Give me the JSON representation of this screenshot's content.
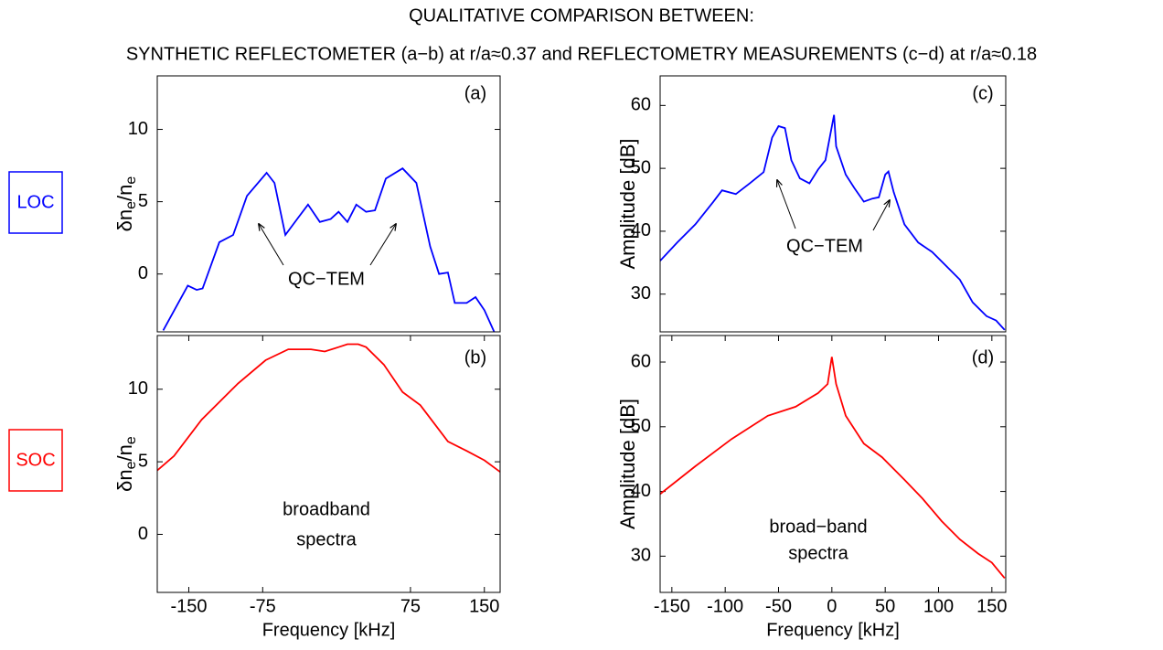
{
  "title": "QUALITATIVE COMPARISON BETWEEN:",
  "subtitle": "SYNTHETIC REFLECTOMETER (a−b) at r/a≈0.37 and REFLECTOMETRY MEASUREMENTS (c−d) at r/a≈0.18",
  "row_labels": [
    {
      "text": "LOC",
      "color": "#0000ff"
    },
    {
      "text": "SOC",
      "color": "#ff0000"
    }
  ],
  "chart_data": [
    {
      "type": "line",
      "annotations": [
        "(a)",
        "QC−TEM"
      ],
      "ylabel": [
        "δn",
        "e",
        "/n",
        "e"
      ],
      "x": [
        -176,
        -151,
        -142,
        -136,
        -119,
        -105,
        -91,
        -71,
        -63,
        -52,
        -40,
        -29,
        -17,
        -6,
        2,
        11,
        20,
        30,
        39,
        50,
        67,
        81,
        95,
        104,
        113,
        120,
        132,
        141,
        150,
        160
      ],
      "series": [
        {
          "color": "#0000ff",
          "values": [
            -3.9,
            -0.8,
            -1.1,
            -1.0,
            2.2,
            2.7,
            5.4,
            7.0,
            6.3,
            2.7,
            3.8,
            4.8,
            3.6,
            3.8,
            4.3,
            3.6,
            4.8,
            4.3,
            4.4,
            6.6,
            7.3,
            6.3,
            1.9,
            0,
            0.1,
            -2,
            -2,
            -1.6,
            -2.5,
            -4
          ]
        }
      ],
      "xlim": [
        -182,
        166
      ],
      "ylim": [
        -4,
        13.7
      ],
      "yticks": [
        0,
        5,
        10
      ]
    },
    {
      "type": "line",
      "annotations": [
        "(b)",
        "broadband",
        "spectra"
      ],
      "ylabel": [
        "δn",
        "e",
        "/n",
        "e"
      ],
      "xlabel": "Frequency [kHz]",
      "x": [
        -182,
        -165,
        -137,
        -100,
        -72,
        -49,
        -26,
        -12,
        2,
        11,
        22,
        30,
        48,
        67,
        85,
        113,
        132,
        150,
        166
      ],
      "series": [
        {
          "color": "#ff0000",
          "values": [
            4.4,
            5.4,
            7.9,
            10.4,
            12,
            12.75,
            12.75,
            12.6,
            12.9,
            13.1,
            13.1,
            12.9,
            11.7,
            9.8,
            8.9,
            6.4,
            5.75,
            5.1,
            4.3
          ]
        }
      ],
      "xlim": [
        -182,
        166
      ],
      "ylim": [
        -4,
        13.7
      ],
      "yticks": [
        0,
        5,
        10
      ],
      "xticks": [
        -150,
        -75,
        75,
        150
      ]
    },
    {
      "type": "line",
      "annotations": [
        "(c)",
        "QC−TEM"
      ],
      "ylabel": [
        "Amplitude [dB]"
      ],
      "x": [
        -161,
        -145,
        -128,
        -111,
        -103,
        -90,
        -77,
        -64,
        -56,
        -50,
        -44,
        -38,
        -30,
        -21,
        -13,
        -6,
        -2,
        2,
        4,
        13,
        21,
        30,
        38,
        44,
        50,
        53,
        58,
        68,
        81,
        94,
        107,
        120,
        132,
        145,
        154,
        162
      ],
      "series": [
        {
          "color": "#0000ff",
          "values": [
            35.3,
            38.2,
            41.1,
            44.7,
            46.5,
            45.9,
            47.6,
            49.4,
            54.9,
            56.7,
            56.4,
            51.3,
            48.4,
            47.6,
            49.8,
            51.3,
            54.9,
            58.5,
            53.5,
            49,
            46.9,
            44.7,
            45.2,
            45.4,
            49,
            49.5,
            46.2,
            41.1,
            38.2,
            36.7,
            34.5,
            32.3,
            28.7,
            26.5,
            25.8,
            24.3
          ]
        }
      ],
      "xlim": [
        -161,
        163
      ],
      "ylim": [
        24,
        64.7
      ],
      "yticks": [
        30,
        40,
        50,
        60
      ]
    },
    {
      "type": "line",
      "annotations": [
        "(d)",
        "broad−band",
        "spectra"
      ],
      "ylabel": [
        "Amplitude [dB]"
      ],
      "xlabel": "Frequency [kHz]",
      "x": [
        -161,
        -128,
        -94,
        -60,
        -34,
        -13,
        -4,
        0,
        4,
        13,
        30,
        47,
        68,
        85,
        103,
        120,
        137,
        150,
        162
      ],
      "series": [
        {
          "color": "#ff0000",
          "values": [
            39.6,
            43.9,
            48.1,
            51.7,
            53.1,
            55.2,
            56.6,
            60.8,
            56.6,
            51.7,
            47.4,
            45.3,
            41.8,
            38.9,
            35.4,
            32.6,
            30.4,
            29,
            26.6
          ]
        }
      ],
      "xlim": [
        -161,
        163
      ],
      "ylim": [
        24.4,
        64.1
      ],
      "yticks": [
        30,
        40,
        50,
        60
      ],
      "xticks": [
        -150,
        -100,
        -50,
        0,
        50,
        100,
        150
      ]
    }
  ]
}
